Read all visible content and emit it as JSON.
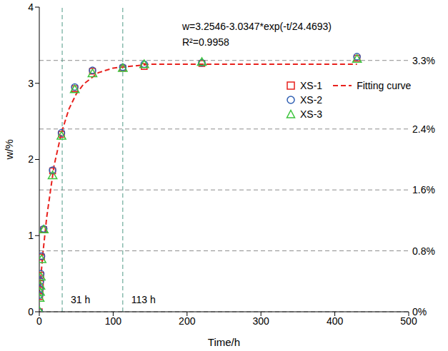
{
  "chart_data": {
    "type": "scatter",
    "x_label": "Time/h",
    "y_label": "w/%",
    "annotations": [
      "w=3.2546-3.0347*exp(-t/24.4693)",
      "R²=0.9958"
    ],
    "xlim": [
      0,
      500
    ],
    "xticks": [
      0,
      100,
      200,
      300,
      400,
      500
    ],
    "ylim": [
      0,
      4
    ],
    "yticks": [
      0,
      1,
      2,
      3,
      4
    ],
    "grid": false,
    "legend": "right",
    "series": [
      {
        "name": "XS-1",
        "type": "scatter",
        "color": "#e8211d",
        "marker": "square",
        "x": [
          0,
          0.5,
          1,
          1.5,
          2,
          3,
          6,
          18,
          30,
          48,
          72,
          113,
          142,
          220,
          430
        ],
        "values": [
          0,
          0.2,
          0.28,
          0.37,
          0.48,
          0.72,
          1.08,
          1.85,
          2.33,
          2.93,
          3.16,
          3.2,
          3.22,
          3.26,
          3.33
        ]
      },
      {
        "name": "XS-2",
        "type": "scatter",
        "color": "#2f5fb3",
        "marker": "circle",
        "x": [
          0,
          0.5,
          1,
          1.5,
          2,
          3,
          6,
          18,
          30,
          48,
          72,
          113,
          142,
          220,
          430
        ],
        "values": [
          0,
          0.22,
          0.3,
          0.4,
          0.5,
          0.73,
          1.09,
          1.86,
          2.35,
          2.95,
          3.17,
          3.21,
          3.25,
          3.27,
          3.35
        ]
      },
      {
        "name": "XS-3",
        "type": "scatter",
        "color": "#3cc43c",
        "marker": "triangle",
        "x": [
          0,
          0.5,
          1,
          1.5,
          2,
          3,
          6,
          18,
          30,
          48,
          72,
          113,
          142,
          220,
          430
        ],
        "values": [
          0,
          0.17,
          0.25,
          0.33,
          0.45,
          0.68,
          1.07,
          1.78,
          2.3,
          2.91,
          3.12,
          3.19,
          3.24,
          3.27,
          3.31
        ]
      },
      {
        "name": "Fitting curve",
        "type": "line",
        "color": "#e8211d",
        "line_style": "dashed",
        "x": [
          0,
          5,
          10,
          20,
          30,
          40,
          50,
          60,
          80,
          100,
          150,
          200,
          300,
          430
        ],
        "values": [
          0.22,
          0.78,
          1.24,
          1.92,
          2.35,
          2.66,
          2.86,
          2.99,
          3.14,
          3.2,
          3.25,
          3.25,
          3.25,
          3.25
        ]
      }
    ],
    "hlines": [
      {
        "value": 3.3,
        "label": "3.3%",
        "color": "#8c8c8c"
      },
      {
        "value": 2.4,
        "label": "2.4%",
        "color": "#8c8c8c"
      },
      {
        "value": 1.6,
        "label": "1.6%",
        "color": "#8c8c8c"
      },
      {
        "value": 0.8,
        "label": "0.8%",
        "color": "#8c8c8c"
      },
      {
        "value": 0,
        "label": "0%",
        "color": "#8c8c8c"
      }
    ],
    "vlines": [
      {
        "value": 31,
        "label": "31 h",
        "color": "#4f9a86"
      },
      {
        "value": 113,
        "label": "113 h",
        "color": "#4f9a86"
      }
    ]
  }
}
